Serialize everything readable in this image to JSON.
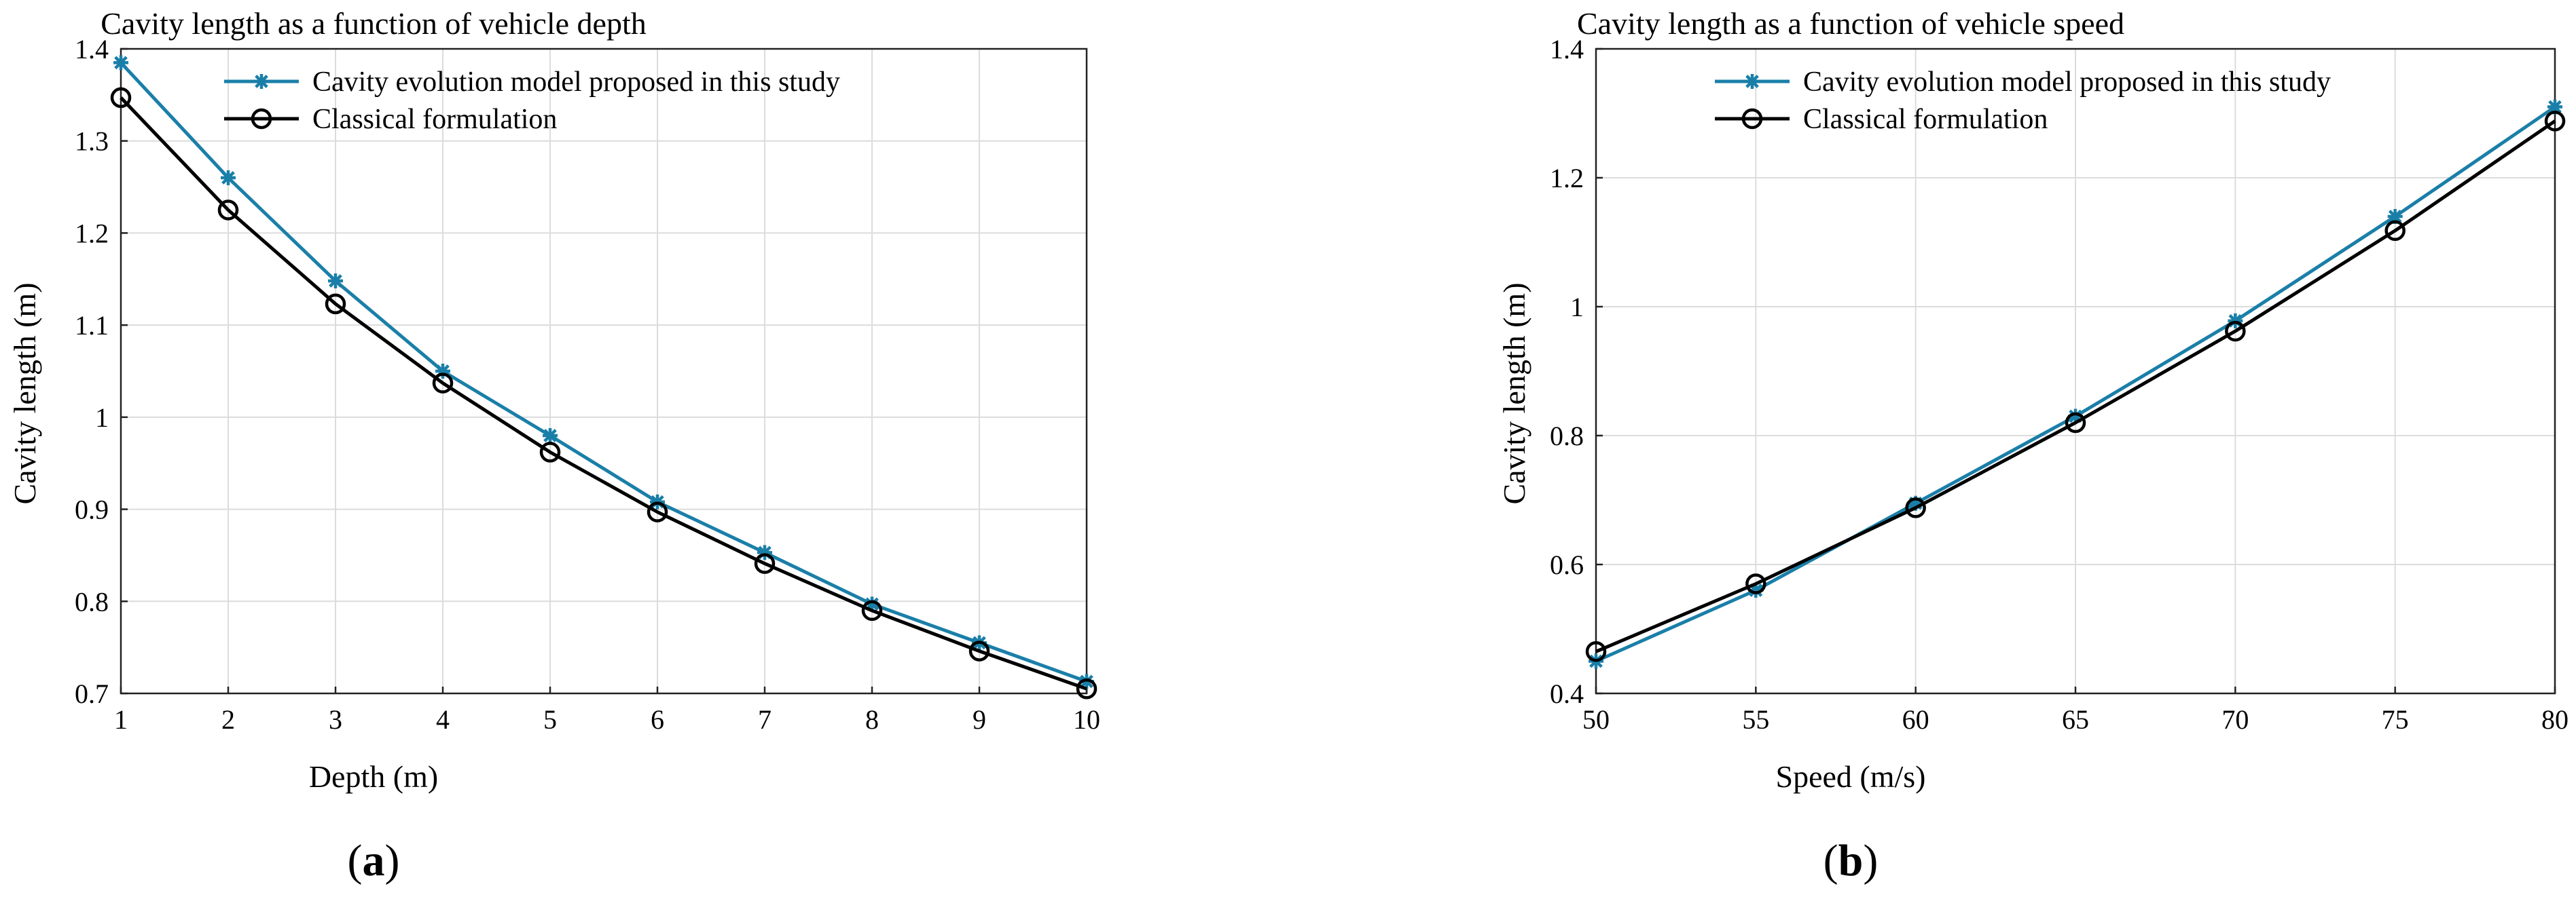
{
  "colors": {
    "proposed": "#1a7fa8",
    "classical": "#000000",
    "grid": "#dcdcdc"
  },
  "chart_data": [
    {
      "type": "line",
      "panel": "a",
      "caption": {
        "open": "(",
        "letter": "a",
        "close": ")"
      },
      "title": "Cavity length as a function of vehicle depth",
      "xlabel": "Depth (m)",
      "ylabel": "Cavity length (m)",
      "xlim": [
        1,
        10
      ],
      "ylim": [
        0.7,
        1.4
      ],
      "xticks": [
        1,
        2,
        3,
        4,
        5,
        6,
        7,
        8,
        9,
        10
      ],
      "xtick_labels": [
        "1",
        "2",
        "3",
        "4",
        "5",
        "6",
        "7",
        "8",
        "9",
        "10"
      ],
      "yticks": [
        0.7,
        0.8,
        0.9,
        1.0,
        1.1,
        1.2,
        1.3,
        1.4
      ],
      "ytick_labels": [
        "0.7",
        "0.8",
        "0.9",
        "1",
        "1.1",
        "1.2",
        "1.3",
        "1.4"
      ],
      "grid": true,
      "legend_position": "top",
      "x": [
        1,
        2,
        3,
        4,
        5,
        6,
        7,
        8,
        9,
        10
      ],
      "series": [
        {
          "name": "Cavity evolution model proposed in this study",
          "marker": "star",
          "color": "#1a7fa8",
          "values": [
            1.385,
            1.26,
            1.148,
            1.05,
            0.98,
            0.908,
            0.853,
            0.797,
            0.755,
            0.713
          ]
        },
        {
          "name": "Classical formulation",
          "marker": "circle",
          "color": "#000000",
          "values": [
            1.347,
            1.225,
            1.123,
            1.037,
            0.962,
            0.897,
            0.841,
            0.79,
            0.746,
            0.705
          ]
        }
      ]
    },
    {
      "type": "line",
      "panel": "b",
      "caption": {
        "open": "(",
        "letter": "b",
        "close": ")"
      },
      "title": "Cavity length as a function of vehicle speed",
      "xlabel": "Speed (m/s)",
      "ylabel": "Cavity length (m)",
      "xlim": [
        50,
        80
      ],
      "ylim": [
        0.4,
        1.4
      ],
      "xticks": [
        50,
        55,
        60,
        65,
        70,
        75,
        80
      ],
      "xtick_labels": [
        "50",
        "55",
        "60",
        "65",
        "70",
        "75",
        "80"
      ],
      "yticks": [
        0.4,
        0.6,
        0.8,
        1.0,
        1.2,
        1.4
      ],
      "ytick_labels": [
        "0.4",
        "0.6",
        "0.8",
        "1",
        "1.2",
        "1.4"
      ],
      "grid": true,
      "legend_position": "top",
      "x": [
        50,
        55,
        60,
        65,
        70,
        75,
        80
      ],
      "series": [
        {
          "name": "Cavity evolution model proposed in this study",
          "marker": "star",
          "color": "#1a7fa8",
          "values": [
            0.45,
            0.56,
            0.695,
            0.83,
            0.978,
            1.14,
            1.31
          ]
        },
        {
          "name": "Classical formulation",
          "marker": "circle",
          "color": "#000000",
          "values": [
            0.465,
            0.57,
            0.688,
            0.82,
            0.962,
            1.118,
            1.288
          ]
        }
      ]
    }
  ]
}
